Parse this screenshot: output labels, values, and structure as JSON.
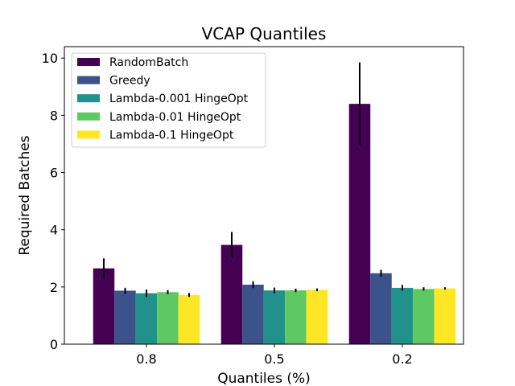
{
  "chart_data": {
    "type": "bar",
    "title": "VCAP Quantiles",
    "xlabel": "Quantiles (%)",
    "ylabel": "Required Batches",
    "categories": [
      "0.8",
      "0.5",
      "0.2"
    ],
    "ylim": [
      0,
      10.4
    ],
    "yticks": [
      "0",
      "2",
      "4",
      "6",
      "8",
      "10"
    ],
    "grid": false,
    "legend_position": "top-left",
    "series": [
      {
        "name": "RandomBatch",
        "color": "#440154",
        "values": [
          2.65,
          3.47,
          8.4
        ],
        "errors": [
          0.35,
          0.45,
          1.45
        ]
      },
      {
        "name": "Greedy",
        "color": "#3b528b",
        "values": [
          1.87,
          2.08,
          2.48
        ],
        "errors": [
          0.1,
          0.12,
          0.12
        ]
      },
      {
        "name": "Lambda-0.001 HingeOpt",
        "color": "#21918c",
        "values": [
          1.78,
          1.88,
          1.97
        ],
        "errors": [
          0.13,
          0.1,
          0.1
        ]
      },
      {
        "name": "Lambda-0.01 HingeOpt",
        "color": "#5ec962",
        "values": [
          1.82,
          1.88,
          1.93
        ],
        "errors": [
          0.07,
          0.06,
          0.06
        ]
      },
      {
        "name": "Lambda-0.1 HingeOpt",
        "color": "#fde725",
        "values": [
          1.72,
          1.9,
          1.95
        ],
        "errors": [
          0.07,
          0.05,
          0.04
        ]
      }
    ]
  }
}
